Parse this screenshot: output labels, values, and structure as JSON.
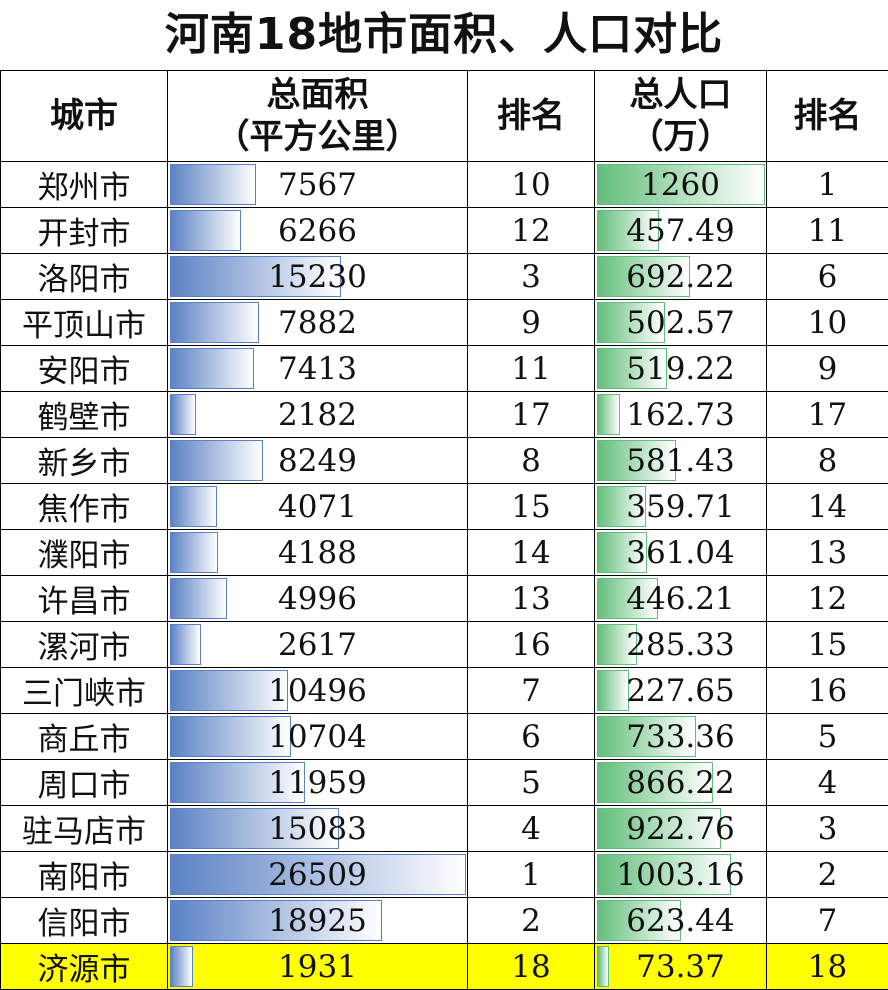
{
  "title": "河南18地市面积、人口对比",
  "headers": {
    "city": "城市",
    "area_line1": "总面积",
    "area_line2": "（平方公里）",
    "area_rank": "排名",
    "pop_line1": "总人口",
    "pop_line2": "（万）",
    "pop_rank": "排名"
  },
  "highlight_color": "#ffff00",
  "area_bar_color": "#5b82c4",
  "pop_bar_color": "#63be7b",
  "area_max": 26509,
  "pop_max": 1260,
  "rows": [
    {
      "city": "郑州市",
      "area": "7567",
      "area_rank": "10",
      "pop": "1260",
      "pop_rank": "1"
    },
    {
      "city": "开封市",
      "area": "6266",
      "area_rank": "12",
      "pop": "457.49",
      "pop_rank": "11"
    },
    {
      "city": "洛阳市",
      "area": "15230",
      "area_rank": "3",
      "pop": "692.22",
      "pop_rank": "6"
    },
    {
      "city": "平顶山市",
      "area": "7882",
      "area_rank": "9",
      "pop": "502.57",
      "pop_rank": "10"
    },
    {
      "city": "安阳市",
      "area": "7413",
      "area_rank": "11",
      "pop": "519.22",
      "pop_rank": "9"
    },
    {
      "city": "鹤壁市",
      "area": "2182",
      "area_rank": "17",
      "pop": "162.73",
      "pop_rank": "17"
    },
    {
      "city": "新乡市",
      "area": "8249",
      "area_rank": "8",
      "pop": "581.43",
      "pop_rank": "8"
    },
    {
      "city": "焦作市",
      "area": "4071",
      "area_rank": "15",
      "pop": "359.71",
      "pop_rank": "14"
    },
    {
      "city": "濮阳市",
      "area": "4188",
      "area_rank": "14",
      "pop": "361.04",
      "pop_rank": "13"
    },
    {
      "city": "许昌市",
      "area": "4996",
      "area_rank": "13",
      "pop": "446.21",
      "pop_rank": "12"
    },
    {
      "city": "漯河市",
      "area": "2617",
      "area_rank": "16",
      "pop": "285.33",
      "pop_rank": "15"
    },
    {
      "city": "三门峡市",
      "area": "10496",
      "area_rank": "7",
      "pop": "227.65",
      "pop_rank": "16"
    },
    {
      "city": "商丘市",
      "area": "10704",
      "area_rank": "6",
      "pop": "733.36",
      "pop_rank": "5"
    },
    {
      "city": "周口市",
      "area": "11959",
      "area_rank": "5",
      "pop": "866.22",
      "pop_rank": "4"
    },
    {
      "city": "驻马店市",
      "area": "15083",
      "area_rank": "4",
      "pop": "922.76",
      "pop_rank": "3"
    },
    {
      "city": "南阳市",
      "area": "26509",
      "area_rank": "1",
      "pop": "1003.16",
      "pop_rank": "2"
    },
    {
      "city": "信阳市",
      "area": "18925",
      "area_rank": "2",
      "pop": "623.44",
      "pop_rank": "7"
    },
    {
      "city": "济源市",
      "area": "1931",
      "area_rank": "18",
      "pop": "73.37",
      "pop_rank": "18",
      "highlight": true
    }
  ]
}
